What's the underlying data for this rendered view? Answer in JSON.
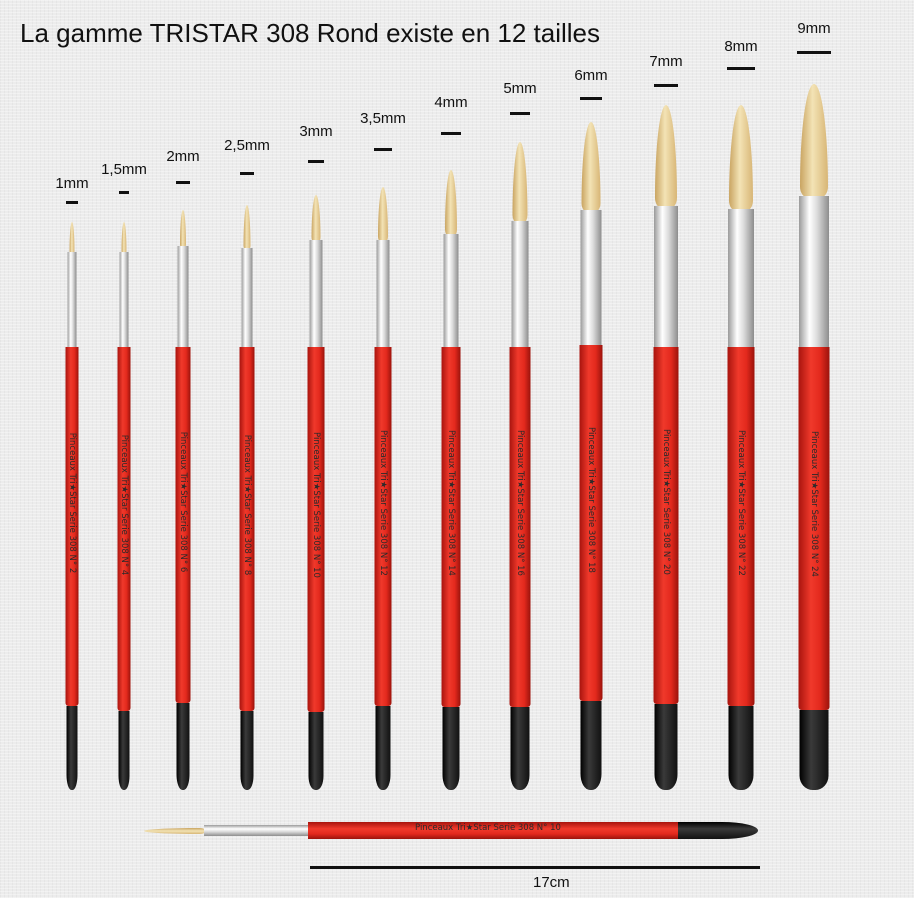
{
  "title": "La gamme TRISTAR 308 Rond existe en 12 tailles",
  "brushes": [
    {
      "size": "1mm",
      "imprint": "Pinceaux Tri★Star Serie 308 N° 2"
    },
    {
      "size": "1,5mm",
      "imprint": "Pinceaux Tri★Star Serie 308 N° 4"
    },
    {
      "size": "2mm",
      "imprint": "Pinceaux Tri★Star Serie 308 N° 6"
    },
    {
      "size": "2,5mm",
      "imprint": "Pinceaux Tri★Star Serie 308 N° 8"
    },
    {
      "size": "3mm",
      "imprint": "Pinceaux Tri★Star Serie 308 N° 10"
    },
    {
      "size": "3,5mm",
      "imprint": "Pinceaux Tri★Star Serie 308 N° 12"
    },
    {
      "size": "4mm",
      "imprint": "Pinceaux Tri★Star Serie 308 N° 14"
    },
    {
      "size": "5mm",
      "imprint": "Pinceaux Tri★Star Serie 308 N° 16"
    },
    {
      "size": "6mm",
      "imprint": "Pinceaux Tri★Star Serie 308 N° 18"
    },
    {
      "size": "7mm",
      "imprint": "Pinceaux Tri★Star Serie 308 N° 20"
    },
    {
      "size": "8mm",
      "imprint": "Pinceaux Tri★Star Serie 308 N° 22"
    },
    {
      "size": "9mm",
      "imprint": "Pinceaux Tri★Star Serie 308 N° 24"
    }
  ],
  "horizontal_brush": {
    "imprint": "Pinceaux Tri★Star Serie 308 N° 10"
  },
  "length_label": "17cm",
  "colors": {
    "handle": "#e3291d",
    "end": "#111111",
    "ferrule": "#dcdcdc",
    "hair": "#e8d39c",
    "background": "#ececec"
  }
}
